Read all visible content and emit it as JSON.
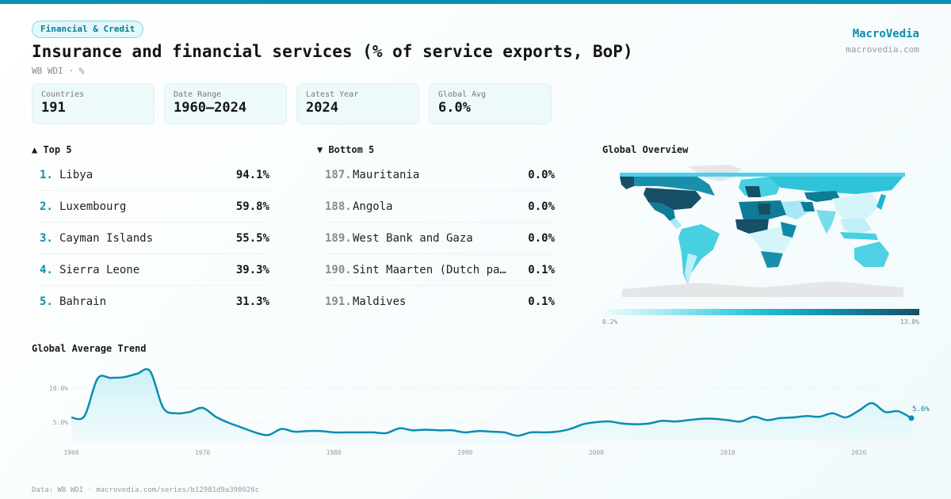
{
  "header": {
    "category_tag": "Financial & Credit",
    "title": "Insurance and financial services (% of service exports, BoP)",
    "subtitle": "WB WDI · %",
    "brand": "MacroVedia",
    "brand_url": "macrovedia.com"
  },
  "stats": [
    {
      "label": "Countries",
      "value": "191"
    },
    {
      "label": "Date Range",
      "value": "1960–2024"
    },
    {
      "label": "Latest Year",
      "value": "2024"
    },
    {
      "label": "Global Avg",
      "value": "6.0%"
    }
  ],
  "top5": {
    "heading": "▲ Top 5",
    "items": [
      {
        "rank": "1.",
        "name": "Libya",
        "value": "94.1%"
      },
      {
        "rank": "2.",
        "name": "Luxembourg",
        "value": "59.8%"
      },
      {
        "rank": "3.",
        "name": "Cayman Islands",
        "value": "55.5%"
      },
      {
        "rank": "4.",
        "name": "Sierra Leone",
        "value": "39.3%"
      },
      {
        "rank": "5.",
        "name": "Bahrain",
        "value": "31.3%"
      }
    ]
  },
  "bottom5": {
    "heading": "▼ Bottom 5",
    "items": [
      {
        "rank": "187.",
        "name": "Mauritania",
        "value": "0.0%"
      },
      {
        "rank": "188.",
        "name": "Angola",
        "value": "0.0%"
      },
      {
        "rank": "189.",
        "name": "West Bank and Gaza",
        "value": "0.0%"
      },
      {
        "rank": "190.",
        "name": "Sint Maarten (Dutch pa…",
        "value": "0.1%"
      },
      {
        "rank": "191.",
        "name": "Maldives",
        "value": "0.1%"
      }
    ]
  },
  "map": {
    "heading": "Global Overview",
    "legend_min": "0.2%",
    "legend_max": "13.8%",
    "colors": {
      "low": "#f2fcfe",
      "mid": "#1fb3cf",
      "high": "#164f66",
      "nodata": "#e4e6e8"
    }
  },
  "trend": {
    "heading": "Global Average Trend"
  },
  "chart_data": {
    "type": "area",
    "title": "Global Average Trend",
    "xlabel": "",
    "ylabel": "",
    "x": [
      1960,
      1961,
      1962,
      1963,
      1964,
      1965,
      1966,
      1967,
      1968,
      1969,
      1970,
      1971,
      1972,
      1973,
      1974,
      1975,
      1976,
      1977,
      1978,
      1979,
      1980,
      1981,
      1982,
      1983,
      1984,
      1985,
      1986,
      1987,
      1988,
      1989,
      1990,
      1991,
      1992,
      1993,
      1994,
      1995,
      1996,
      1997,
      1998,
      1999,
      2000,
      2001,
      2002,
      2003,
      2004,
      2005,
      2006,
      2007,
      2008,
      2009,
      2010,
      2011,
      2012,
      2013,
      2014,
      2015,
      2016,
      2017,
      2018,
      2019,
      2020,
      2021,
      2022,
      2023,
      2024
    ],
    "values": [
      5.7,
      5.9,
      11.4,
      11.5,
      11.6,
      12.1,
      12.5,
      7.1,
      6.3,
      6.5,
      7.1,
      5.8,
      4.9,
      4.2,
      3.5,
      3.1,
      4.0,
      3.6,
      3.7,
      3.7,
      3.5,
      3.5,
      3.5,
      3.5,
      3.4,
      4.1,
      3.8,
      3.9,
      3.8,
      3.8,
      3.5,
      3.7,
      3.6,
      3.5,
      3.0,
      3.5,
      3.5,
      3.6,
      4.0,
      4.7,
      5.0,
      5.1,
      4.8,
      4.7,
      4.8,
      5.2,
      5.1,
      5.3,
      5.5,
      5.5,
      5.3,
      5.1,
      5.8,
      5.3,
      5.6,
      5.7,
      5.9,
      5.8,
      6.3,
      5.7,
      6.7,
      7.8,
      6.5,
      6.6,
      5.6
    ],
    "xlim": [
      1960,
      2024
    ],
    "ylim": [
      0,
      14
    ],
    "x_ticks": [
      "1960",
      "1970",
      "1980",
      "1990",
      "2000",
      "2010",
      "2020"
    ],
    "y_ticks": [
      {
        "value": 10,
        "label": "10.0%"
      },
      {
        "value": 5,
        "label": "5.0%"
      }
    ],
    "last_label": "5.6%",
    "grid": true,
    "color": "#0b8db0"
  },
  "footer": "Data: WB WDI · macrovedia.com/series/b12981d9a398026c"
}
